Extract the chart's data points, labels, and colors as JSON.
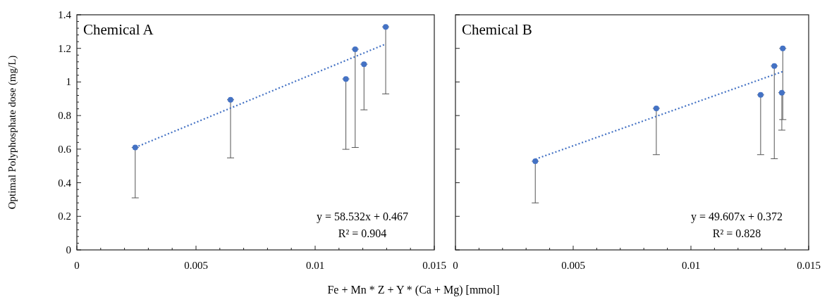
{
  "chart_data": [
    {
      "type": "scatter",
      "title": "Chemical A",
      "xlabel": "Fe + Mn * Z + Y * (Ca + Mg) [mmol]",
      "ylabel": "Optimal Polyphosphate dose (mg/L)",
      "xlim": [
        0,
        0.015
      ],
      "xticks": [
        0,
        {
          "value": 0.001,
          "label": null
        },
        {
          "value": 0.002,
          "label": null
        },
        {
          "value": 0.003,
          "label": null
        },
        {
          "value": 0.004,
          "label": null
        },
        0.005,
        {
          "value": 0.006,
          "label": null
        },
        {
          "value": 0.007,
          "label": null
        },
        {
          "value": 0.008,
          "label": null
        },
        {
          "value": 0.009,
          "label": null
        },
        0.01,
        {
          "value": 0.011,
          "label": null
        },
        {
          "value": 0.012,
          "label": null
        },
        {
          "value": 0.013,
          "label": null
        },
        {
          "value": 0.014,
          "label": null
        },
        0.015
      ],
      "ylim": [
        0,
        1.4
      ],
      "yticks": [
        0,
        {
          "value": 0.04,
          "label": null
        },
        {
          "value": 0.08,
          "label": null
        },
        {
          "value": 0.12,
          "label": null
        },
        {
          "value": 0.16,
          "label": null
        },
        0.2,
        {
          "value": 0.24,
          "label": null
        },
        {
          "value": 0.28,
          "label": null
        },
        {
          "value": 0.32,
          "label": null
        },
        {
          "value": 0.36,
          "label": null
        },
        0.4,
        {
          "value": 0.44,
          "label": null
        },
        {
          "value": 0.48,
          "label": null
        },
        {
          "value": 0.52,
          "label": null
        },
        {
          "value": 0.56,
          "label": null
        },
        0.6,
        {
          "value": 0.64,
          "label": null
        },
        {
          "value": 0.68,
          "label": null
        },
        {
          "value": 0.72,
          "label": null
        },
        {
          "value": 0.76,
          "label": null
        },
        0.8,
        {
          "value": 0.84,
          "label": null
        },
        {
          "value": 0.88,
          "label": null
        },
        {
          "value": 0.92,
          "label": null
        },
        {
          "value": 0.96,
          "label": null
        },
        1,
        {
          "value": 1.04,
          "label": null
        },
        {
          "value": 1.08,
          "label": null
        },
        {
          "value": 1.12,
          "label": null
        },
        {
          "value": 1.16,
          "label": null
        },
        1.2,
        {
          "value": 1.24,
          "label": null
        },
        {
          "value": 1.28,
          "label": null
        },
        {
          "value": 1.32,
          "label": null
        },
        {
          "value": 1.36,
          "label": null
        },
        1.4
      ],
      "grid": false,
      "series": [
        {
          "marker": "circle",
          "color": "#4472c4",
          "x": [
            0.00245,
            0.00645,
            0.01129,
            0.01168,
            0.01205,
            0.01296
          ],
          "values": [
            0.61,
            0.894,
            1.018,
            1.195,
            1.106,
            1.328
          ],
          "errors": [
            [
              0.31,
              0.61
            ],
            [
              0.548,
              0.894
            ],
            [
              0.599,
              1.018
            ],
            [
              0.61,
              1.195
            ],
            [
              0.834,
              1.106
            ],
            [
              0.929,
              1.328
            ]
          ]
        },
        {
          "type": "line",
          "color": "#4472c4",
          "line_style": "dotted",
          "x": [
            0.00245,
            0.01296
          ],
          "values": [
            0.61,
            1.226
          ]
        }
      ],
      "annotations": [
        "y = 58.532x + 0.467",
        "R² = 0.904"
      ]
    },
    {
      "type": "scatter",
      "title": "Chemical B",
      "xlim": [
        0,
        0.015
      ],
      "xticks": [
        0,
        {
          "value": 0.001,
          "label": null
        },
        {
          "value": 0.002,
          "label": null
        },
        {
          "value": 0.003,
          "label": null
        },
        {
          "value": 0.004,
          "label": null
        },
        0.005,
        {
          "value": 0.006,
          "label": null
        },
        {
          "value": 0.007,
          "label": null
        },
        {
          "value": 0.008,
          "label": null
        },
        {
          "value": 0.009,
          "label": null
        },
        0.01,
        {
          "value": 0.011,
          "label": null
        },
        {
          "value": 0.012,
          "label": null
        },
        {
          "value": 0.013,
          "label": null
        },
        {
          "value": 0.014,
          "label": null
        },
        0.015
      ],
      "ylim": [
        0,
        1.4
      ],
      "yticks": [
        0,
        0.2,
        0.4,
        0.6,
        0.8,
        1,
        1.2,
        1.4
      ],
      "tick_labels": "x",
      "grid": false,
      "series": [
        {
          "marker": "circle",
          "color": "#4472c4",
          "x": [
            0.00339,
            0.00853,
            0.01296,
            0.01354,
            0.0139,
            0.01386
          ],
          "values": [
            0.528,
            0.843,
            0.923,
            1.095,
            1.2,
            0.936
          ],
          "errors": [
            [
              0.28,
              0.528
            ],
            [
              0.567,
              0.843
            ],
            [
              0.567,
              0.923
            ],
            [
              0.543,
              1.095
            ],
            [
              0.776,
              1.2
            ],
            [
              0.713,
              0.936
            ]
          ]
        },
        {
          "type": "line",
          "color": "#4472c4",
          "line_style": "dotted",
          "x": [
            0.00339,
            0.0139
          ],
          "values": [
            0.54,
            1.062
          ]
        }
      ],
      "annotations": [
        "y = 49.607x + 0.372",
        "R² = 0.828"
      ]
    }
  ]
}
